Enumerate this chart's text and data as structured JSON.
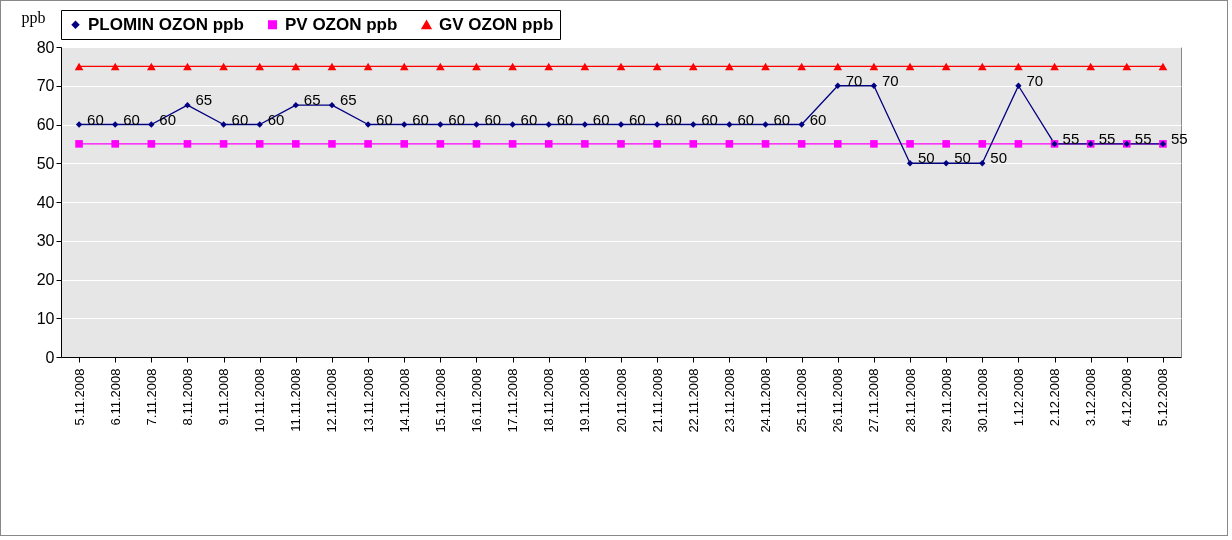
{
  "chart_data": {
    "type": "line",
    "ylabel": "ppb",
    "categories": [
      "5.11.2008",
      "6.11.2008",
      "7.11.2008",
      "8.11.2008",
      "9.11.2008",
      "10.11.2008",
      "11.11.2008",
      "12.11.2008",
      "13.11.2008",
      "14.11.2008",
      "15.11.2008",
      "16.11.2008",
      "17.11.2008",
      "18.11.2008",
      "19.11.2008",
      "20.11.2008",
      "21.11.2008",
      "22.11.2008",
      "23.11.2008",
      "24.11.2008",
      "25.11.2008",
      "26.11.2008",
      "27.11.2008",
      "28.11.2008",
      "29.11.2008",
      "30.11.2008",
      "1.12.2008",
      "2.12.2008",
      "3.12.2008",
      "4.12.2008",
      "5.12.2008"
    ],
    "series": [
      {
        "name": "PLOMIN OZON ppb",
        "color": "#000080",
        "marker": "diamond",
        "values": [
          60,
          60,
          60,
          65,
          60,
          60,
          65,
          65,
          60,
          60,
          60,
          60,
          60,
          60,
          60,
          60,
          60,
          60,
          60,
          60,
          60,
          70,
          70,
          50,
          50,
          50,
          70,
          55,
          55,
          55,
          55
        ],
        "value_labels": [
          "60",
          "60",
          "60",
          "65",
          "60",
          "60",
          "65",
          "65",
          "60",
          "60",
          "60",
          "60",
          "60",
          "60",
          "60",
          "60",
          "60",
          "60",
          "60",
          "60",
          "60",
          "70",
          "70",
          "50",
          "50",
          "50",
          "70",
          "55",
          "55",
          "55",
          "55"
        ]
      },
      {
        "name": "PV OZON ppb",
        "color": "#ff00ff",
        "marker": "square",
        "values": [
          55,
          55,
          55,
          55,
          55,
          55,
          55,
          55,
          55,
          55,
          55,
          55,
          55,
          55,
          55,
          55,
          55,
          55,
          55,
          55,
          55,
          55,
          55,
          55,
          55,
          55,
          55,
          55,
          55,
          55,
          55
        ]
      },
      {
        "name": "GV OZON ppb",
        "color": "#ff0000",
        "marker": "triangle",
        "values": [
          75,
          75,
          75,
          75,
          75,
          75,
          75,
          75,
          75,
          75,
          75,
          75,
          75,
          75,
          75,
          75,
          75,
          75,
          75,
          75,
          75,
          75,
          75,
          75,
          75,
          75,
          75,
          75,
          75,
          75,
          75
        ]
      }
    ],
    "ylim": [
      0,
      80
    ],
    "yticks": [
      0,
      10,
      20,
      30,
      40,
      50,
      60,
      70,
      80
    ],
    "grid": "y",
    "legend": "top"
  }
}
